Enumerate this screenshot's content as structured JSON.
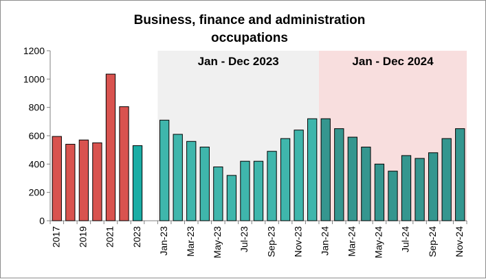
{
  "chart_data": {
    "type": "bar",
    "title_lines": [
      "Business, finance and administration",
      "occupations"
    ],
    "xlabel": "",
    "ylabel": "",
    "ylim": [
      0,
      1200
    ],
    "yticks": [
      0,
      200,
      400,
      600,
      800,
      1000,
      1200
    ],
    "grid": false,
    "shaded_periods": [
      {
        "label": "Jan - Dec 2023",
        "from": "Jan-23",
        "to": "Dec-23",
        "color": "#f0f0f0"
      },
      {
        "label": "Jan - Dec 2024",
        "from": "Jan-24",
        "to": "Dec-24",
        "color": "#f8dede"
      }
    ],
    "groups": [
      {
        "name": "annual",
        "color": "#d9534f",
        "categories": [
          "2017",
          "2018",
          "2019",
          "2020",
          "2021",
          "2022"
        ],
        "values": [
          595,
          540,
          570,
          550,
          1035,
          805
        ]
      },
      {
        "name": "annual-2023",
        "color": "#1aada5",
        "categories": [
          "2023"
        ],
        "values": [
          530
        ]
      },
      {
        "name": "monthly-2023",
        "color": "#3fb6ac",
        "categories": [
          "Jan-23",
          "Feb-23",
          "Mar-23",
          "Apr-23",
          "May-23",
          "Jun-23",
          "Jul-23",
          "Aug-23",
          "Sep-23",
          "Oct-23",
          "Nov-23",
          "Dec-23"
        ],
        "values": [
          710,
          610,
          560,
          520,
          380,
          320,
          420,
          420,
          490,
          580,
          640,
          720
        ]
      },
      {
        "name": "monthly-2024",
        "color": "#35968f",
        "categories": [
          "Jan-24",
          "Feb-24",
          "Mar-24",
          "Apr-24",
          "May-24",
          "Jun-24",
          "Jul-24",
          "Aug-24",
          "Sep-24",
          "Oct-24",
          "Nov-24"
        ],
        "values": [
          720,
          650,
          590,
          520,
          400,
          350,
          460,
          440,
          480,
          580,
          650
        ]
      }
    ],
    "visible_xtick_labels": [
      "2017",
      "2019",
      "2021",
      "2023",
      "Jan-23",
      "Mar-23",
      "May-23",
      "Jul-23",
      "Sep-23",
      "Nov-23",
      "Jan-24",
      "Mar-24",
      "May-24",
      "Jul-24",
      "Sep-24",
      "Nov-24"
    ]
  }
}
